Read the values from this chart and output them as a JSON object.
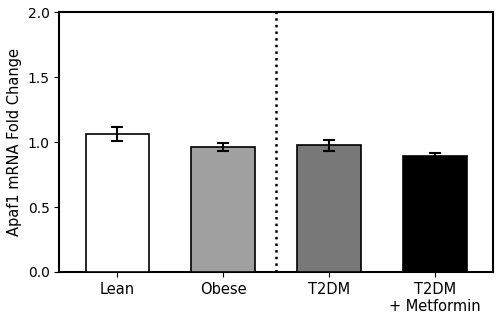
{
  "categories": [
    "Lean",
    "Obese",
    "T2DM",
    "T2DM\n+ Metformin"
  ],
  "values": [
    1.065,
    0.965,
    0.975,
    0.895
  ],
  "errors": [
    0.055,
    0.03,
    0.04,
    0.02
  ],
  "bar_colors": [
    "#ffffff",
    "#a0a0a0",
    "#787878",
    "#000000"
  ],
  "bar_edgecolors": [
    "#000000",
    "#000000",
    "#000000",
    "#000000"
  ],
  "ylabel": "Apaf1 mRNA Fold Change",
  "ylim": [
    0.0,
    2.0
  ],
  "yticks": [
    0.0,
    0.5,
    1.0,
    1.5,
    2.0
  ],
  "bar_width": 0.6,
  "dotted_line_x": 1.5,
  "figsize": [
    5.0,
    3.21
  ],
  "dpi": 100,
  "capsize": 4,
  "elinewidth": 1.5,
  "ecapthick": 1.5,
  "xlim": [
    -0.55,
    3.55
  ]
}
